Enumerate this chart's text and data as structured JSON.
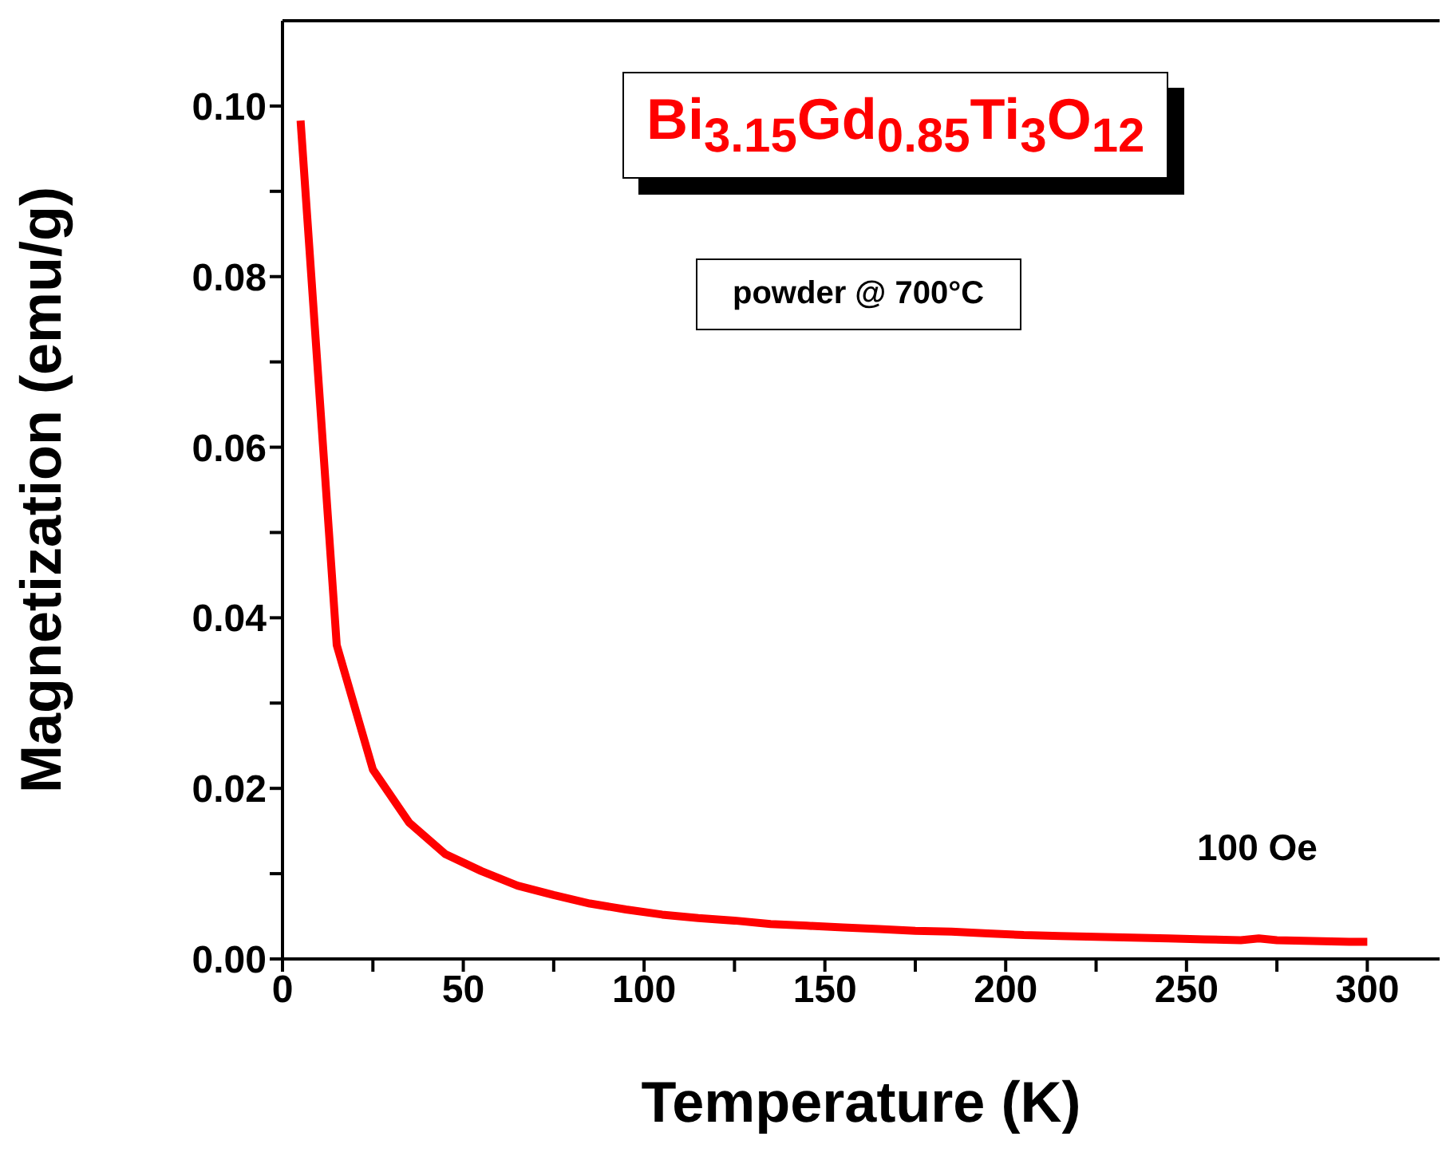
{
  "chart_data": {
    "type": "line",
    "xlabel": "Temperature (K)",
    "ylabel": "Magnetization (emu/g)",
    "x": [
      5,
      15,
      25,
      35,
      45,
      55,
      65,
      75,
      85,
      95,
      105,
      115,
      125,
      135,
      145,
      155,
      165,
      175,
      185,
      195,
      205,
      215,
      225,
      235,
      245,
      255,
      265,
      270,
      275,
      285,
      295,
      300
    ],
    "series": [
      {
        "color": "#ff0000",
        "values": [
          0.0983,
          0.0368,
          0.0222,
          0.016,
          0.0123,
          0.0103,
          0.0086,
          0.0075,
          0.0065,
          0.0058,
          0.0052,
          0.0048,
          0.0045,
          0.0041,
          0.0039,
          0.0037,
          0.0035,
          0.0033,
          0.0032,
          0.003,
          0.0028,
          0.0027,
          0.0026,
          0.0025,
          0.0024,
          0.0023,
          0.0022,
          0.0024,
          0.0022,
          0.0021,
          0.002,
          0.002
        ]
      }
    ],
    "xlim": [
      0,
      320
    ],
    "ylim": [
      0,
      0.11
    ],
    "xticks": [
      0,
      {
        "value": 25,
        "label": null
      },
      50,
      {
        "value": 75,
        "label": null
      },
      100,
      {
        "value": 125,
        "label": null
      },
      150,
      {
        "value": 175,
        "label": null
      },
      200,
      {
        "value": 225,
        "label": null
      },
      250,
      {
        "value": 275,
        "label": null
      },
      300
    ],
    "yticks": [
      {
        "value": 0,
        "label": "0.00"
      },
      {
        "value": 0.01,
        "label": null
      },
      {
        "value": 0.02,
        "label": "0.02"
      },
      {
        "value": 0.03,
        "label": null
      },
      {
        "value": 0.04,
        "label": "0.04"
      },
      {
        "value": 0.05,
        "label": null
      },
      {
        "value": 0.06,
        "label": "0.06"
      },
      {
        "value": 0.07,
        "label": null
      },
      {
        "value": 0.08,
        "label": "0.08"
      },
      {
        "value": 0.09,
        "label": null
      },
      {
        "value": 0.1,
        "label": "0.10"
      }
    ],
    "annotations": [
      "Bi$_{3.15}$Gd$_{0.85}$Ti$_{3}$O$_{12}$",
      "powder @ 700°C",
      "100 Oe"
    ],
    "grid": false,
    "marker": "none",
    "line_style": "solid"
  }
}
